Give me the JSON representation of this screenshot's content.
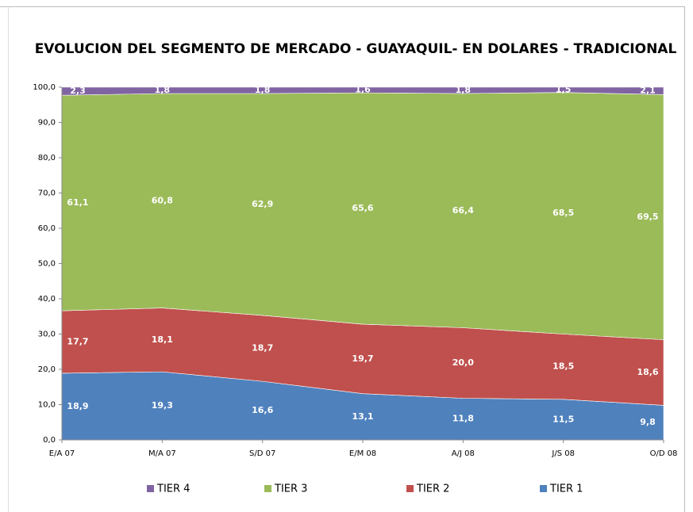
{
  "chart_data": {
    "type": "stacked_area",
    "title": "EVOLUCION DEL SEGMENTO DE MERCADO - GUAYAQUIL- EN DOLARES - TRADICIONAL",
    "categories": [
      "E/A 07",
      "M/A 07",
      "S/D 07",
      "E/M 08",
      "A/J 08",
      "J/S 08",
      "O/D 08"
    ],
    "series": [
      {
        "name": "TIER 1",
        "color": "#4f81bd",
        "values": [
          18.9,
          19.3,
          16.6,
          13.1,
          11.8,
          11.5,
          9.8
        ],
        "value_labels": [
          "18,9",
          "19,3",
          "16,6",
          "13,1",
          "11,8",
          "11,5",
          "9,8"
        ]
      },
      {
        "name": "TIER 2",
        "color": "#c0504d",
        "values": [
          17.7,
          18.1,
          18.7,
          19.7,
          20.0,
          18.5,
          18.6
        ],
        "value_labels": [
          "17,7",
          "18,1",
          "18,7",
          "19,7",
          "20,0",
          "18,5",
          "18,6"
        ]
      },
      {
        "name": "TIER 3",
        "color": "#9bbb59",
        "values": [
          61.1,
          60.8,
          62.9,
          65.6,
          66.4,
          68.5,
          69.5
        ],
        "value_labels": [
          "61,1",
          "60,8",
          "62,9",
          "65,6",
          "66,4",
          "68,5",
          "69,5"
        ]
      },
      {
        "name": "TIER 4",
        "color": "#8064a2",
        "values": [
          2.3,
          1.8,
          1.8,
          1.6,
          1.8,
          1.5,
          2.1
        ],
        "value_labels": [
          "2,3",
          "1,8",
          "1,8",
          "1,6",
          "1,8",
          "1,5",
          "2,1"
        ]
      }
    ],
    "ylim": [
      0,
      100
    ],
    "yticks": [
      {
        "value": 0,
        "label": "0,0"
      },
      {
        "value": 10,
        "label": "10,0"
      },
      {
        "value": 20,
        "label": "20,0"
      },
      {
        "value": 30,
        "label": "30,0"
      },
      {
        "value": 40,
        "label": "40,0"
      },
      {
        "value": 50,
        "label": "50,0"
      },
      {
        "value": 60,
        "label": "60,0"
      },
      {
        "value": 70,
        "label": "70,0"
      },
      {
        "value": 80,
        "label": "80,0"
      },
      {
        "value": 90,
        "label": "90,0"
      },
      {
        "value": 100,
        "label": "100,0"
      }
    ],
    "legend": "bottom"
  }
}
